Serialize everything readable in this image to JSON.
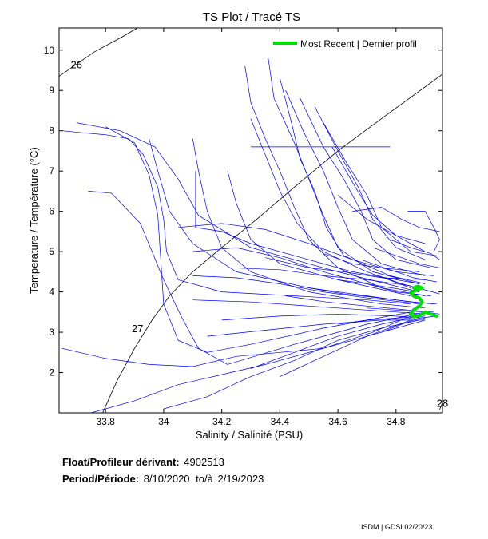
{
  "chart_data": {
    "type": "scatter",
    "title": "TS Plot / Tracé TS",
    "xlabel": "Salinity / Salinité (PSU)",
    "ylabel": "Temperature / Température (°C)",
    "xlim": [
      33.64,
      34.96
    ],
    "ylim": [
      1.0,
      10.55
    ],
    "xticks": [
      "33.8",
      "34",
      "34.2",
      "34.4",
      "34.6",
      "34.8"
    ],
    "xtick_values": [
      33.8,
      34.0,
      34.2,
      34.4,
      34.6,
      34.8
    ],
    "yticks": [
      "2",
      "3",
      "4",
      "5",
      "6",
      "7",
      "8",
      "9",
      "10"
    ],
    "ytick_values": [
      2,
      3,
      4,
      5,
      6,
      7,
      8,
      9,
      10
    ],
    "grid": false,
    "legend_position": "top-right",
    "legend": [
      {
        "name": "Most Recent | Dernier profil",
        "color": "#00e000"
      }
    ],
    "series_color": "#0000ee",
    "recent_color": "#00e000",
    "density_contours": [
      {
        "label": "26",
        "points": [
          [
            33.64,
            9.35
          ],
          [
            33.69,
            9.6
          ],
          [
            33.76,
            9.95
          ],
          [
            33.85,
            10.3
          ],
          [
            33.91,
            10.55
          ]
        ],
        "label_at": [
          33.68,
          9.55
        ]
      },
      {
        "label": "27",
        "points": [
          [
            33.79,
            1.0
          ],
          [
            33.84,
            1.8
          ],
          [
            33.9,
            2.6
          ],
          [
            33.96,
            3.3
          ],
          [
            34.02,
            3.9
          ],
          [
            34.1,
            4.5
          ],
          [
            34.2,
            5.1
          ],
          [
            34.32,
            5.8
          ],
          [
            34.45,
            6.6
          ],
          [
            34.6,
            7.5
          ],
          [
            34.75,
            8.3
          ],
          [
            34.96,
            9.4
          ]
        ],
        "label_at": [
          33.89,
          3.0
        ]
      },
      {
        "label": "28",
        "points": [
          [
            34.95,
            1.08
          ],
          [
            34.96,
            1.25
          ]
        ],
        "label_at": [
          34.94,
          1.15
        ]
      }
    ],
    "recent_profile": {
      "name": "Most Recent | Dernier profil",
      "points": [
        [
          34.94,
          3.4
        ],
        [
          34.92,
          3.45
        ],
        [
          34.9,
          3.5
        ],
        [
          34.88,
          3.42
        ],
        [
          34.86,
          3.38
        ],
        [
          34.85,
          3.45
        ],
        [
          34.86,
          3.55
        ],
        [
          34.88,
          3.65
        ],
        [
          34.89,
          3.75
        ],
        [
          34.88,
          3.85
        ],
        [
          34.86,
          3.9
        ],
        [
          34.85,
          3.98
        ],
        [
          34.87,
          4.05
        ],
        [
          34.89,
          4.1
        ],
        [
          34.875,
          4.14
        ],
        [
          34.86,
          4.1
        ]
      ]
    },
    "profiles": [
      [
        [
          33.65,
          8.0
        ],
        [
          33.72,
          7.95
        ],
        [
          33.8,
          7.9
        ],
        [
          33.88,
          7.8
        ],
        [
          33.93,
          7.4
        ],
        [
          33.98,
          6.6
        ],
        [
          34.0,
          5.8
        ],
        [
          34.01,
          5.0
        ],
        [
          34.05,
          4.3
        ],
        [
          34.2,
          4.0
        ],
        [
          34.45,
          3.9
        ],
        [
          34.7,
          3.8
        ],
        [
          34.85,
          3.7
        ]
      ],
      [
        [
          33.95,
          7.8
        ],
        [
          33.98,
          7.0
        ],
        [
          34.02,
          6.0
        ],
        [
          34.1,
          5.2
        ],
        [
          34.25,
          4.5
        ],
        [
          34.5,
          4.1
        ],
        [
          34.8,
          3.8
        ]
      ],
      [
        [
          33.7,
          8.2
        ],
        [
          33.85,
          8.0
        ],
        [
          33.97,
          7.6
        ],
        [
          34.05,
          6.8
        ],
        [
          34.12,
          5.9
        ],
        [
          34.3,
          5.1
        ],
        [
          34.6,
          4.5
        ],
        [
          34.88,
          4.0
        ]
      ],
      [
        [
          33.8,
          8.1
        ],
        [
          33.9,
          7.7
        ],
        [
          33.95,
          6.9
        ],
        [
          33.98,
          5.9
        ],
        [
          33.99,
          4.8
        ],
        [
          34.0,
          3.7
        ],
        [
          34.05,
          2.8
        ],
        [
          34.15,
          2.5
        ],
        [
          34.3,
          2.7
        ],
        [
          34.55,
          3.1
        ],
        [
          34.85,
          3.5
        ]
      ],
      [
        [
          33.74,
          6.5
        ],
        [
          33.82,
          6.45
        ],
        [
          33.92,
          5.7
        ],
        [
          34.0,
          4.3
        ],
        [
          34.06,
          3.4
        ],
        [
          34.12,
          2.6
        ],
        [
          34.22,
          2.2
        ],
        [
          34.45,
          2.7
        ],
        [
          34.7,
          3.2
        ],
        [
          34.9,
          3.5
        ]
      ],
      [
        [
          33.75,
          1.0
        ],
        [
          33.9,
          1.3
        ],
        [
          34.05,
          1.7
        ],
        [
          34.2,
          1.95
        ],
        [
          34.35,
          2.2
        ],
        [
          34.5,
          2.5
        ],
        [
          34.65,
          2.8
        ],
        [
          34.8,
          3.1
        ],
        [
          34.9,
          3.3
        ]
      ],
      [
        [
          34.0,
          1.1
        ],
        [
          34.15,
          1.4
        ],
        [
          34.3,
          1.9
        ],
        [
          34.45,
          2.3
        ],
        [
          34.6,
          2.8
        ],
        [
          34.75,
          3.1
        ],
        [
          34.88,
          3.3
        ]
      ],
      [
        [
          33.65,
          2.6
        ],
        [
          33.8,
          2.35
        ],
        [
          33.95,
          2.2
        ],
        [
          34.1,
          2.15
        ],
        [
          34.25,
          2.4
        ],
        [
          34.4,
          2.5
        ],
        [
          34.55,
          2.6
        ],
        [
          34.72,
          3.0
        ],
        [
          34.85,
          3.4
        ]
      ],
      [
        [
          34.1,
          7.8
        ],
        [
          34.12,
          7.0
        ],
        [
          34.15,
          6.0
        ],
        [
          34.2,
          5.1
        ],
        [
          34.3,
          4.5
        ],
        [
          34.5,
          4.0
        ],
        [
          34.75,
          3.7
        ],
        [
          34.9,
          3.6
        ]
      ],
      [
        [
          34.22,
          7.0
        ],
        [
          34.25,
          6.2
        ],
        [
          34.3,
          5.3
        ],
        [
          34.4,
          4.7
        ],
        [
          34.6,
          4.3
        ],
        [
          34.85,
          3.9
        ]
      ],
      [
        [
          34.11,
          7.0
        ],
        [
          34.11,
          5.6
        ],
        [
          34.2,
          5.5
        ],
        [
          34.3,
          5.2
        ],
        [
          34.45,
          4.9
        ],
        [
          34.65,
          4.5
        ],
        [
          34.88,
          4.2
        ]
      ],
      [
        [
          34.3,
          7.6
        ],
        [
          34.78,
          7.6
        ]
      ],
      [
        [
          34.28,
          9.6
        ],
        [
          34.3,
          8.7
        ],
        [
          34.35,
          7.8
        ],
        [
          34.4,
          7.0
        ],
        [
          34.45,
          6.1
        ],
        [
          34.5,
          5.3
        ],
        [
          34.6,
          4.6
        ],
        [
          34.75,
          4.1
        ],
        [
          34.9,
          3.9
        ]
      ],
      [
        [
          34.36,
          9.8
        ],
        [
          34.38,
          8.8
        ],
        [
          34.45,
          7.7
        ],
        [
          34.5,
          6.8
        ],
        [
          34.55,
          5.9
        ],
        [
          34.6,
          5.1
        ],
        [
          34.72,
          4.5
        ],
        [
          34.88,
          4.2
        ]
      ],
      [
        [
          34.42,
          9.0
        ],
        [
          34.48,
          8.0
        ],
        [
          34.55,
          7.0
        ],
        [
          34.6,
          6.1
        ],
        [
          34.65,
          5.3
        ],
        [
          34.75,
          4.7
        ],
        [
          34.9,
          4.4
        ]
      ],
      [
        [
          34.47,
          8.8
        ],
        [
          34.55,
          7.6
        ],
        [
          34.62,
          6.8
        ],
        [
          34.68,
          6.0
        ],
        [
          34.72,
          5.3
        ],
        [
          34.8,
          4.8
        ],
        [
          34.92,
          4.6
        ]
      ],
      [
        [
          34.4,
          9.3
        ],
        [
          34.44,
          8.2
        ],
        [
          34.47,
          7.3
        ],
        [
          34.52,
          6.5
        ],
        [
          34.56,
          5.6
        ],
        [
          34.62,
          4.9
        ],
        [
          34.78,
          4.4
        ],
        [
          34.9,
          4.2
        ]
      ],
      [
        [
          34.52,
          8.6
        ],
        [
          34.6,
          7.5
        ],
        [
          34.67,
          6.6
        ],
        [
          34.72,
          5.8
        ],
        [
          34.8,
          5.1
        ],
        [
          34.9,
          4.8
        ]
      ],
      [
        [
          34.55,
          8.2
        ],
        [
          34.63,
          7.2
        ],
        [
          34.7,
          6.4
        ],
        [
          34.75,
          5.6
        ],
        [
          34.85,
          5.0
        ],
        [
          34.94,
          4.9
        ]
      ],
      [
        [
          34.3,
          8.3
        ],
        [
          34.35,
          7.4
        ],
        [
          34.4,
          6.5
        ],
        [
          34.46,
          5.7
        ],
        [
          34.55,
          5.0
        ],
        [
          34.7,
          4.5
        ],
        [
          34.85,
          4.1
        ]
      ],
      [
        [
          34.58,
          7.6
        ],
        [
          34.66,
          6.6
        ],
        [
          34.72,
          5.9
        ],
        [
          34.8,
          5.4
        ],
        [
          34.9,
          5.0
        ]
      ],
      [
        [
          34.6,
          6.4
        ],
        [
          34.7,
          5.8
        ],
        [
          34.8,
          5.4
        ],
        [
          34.9,
          5.2
        ]
      ],
      [
        [
          34.65,
          6.0
        ],
        [
          34.75,
          6.1
        ],
        [
          34.82,
          5.8
        ],
        [
          34.88,
          5.6
        ],
        [
          34.95,
          5.5
        ]
      ],
      [
        [
          34.84,
          6.0
        ],
        [
          34.9,
          6.0
        ],
        [
          34.93,
          5.6
        ],
        [
          34.95,
          5.3
        ],
        [
          34.93,
          5.0
        ]
      ],
      [
        [
          34.05,
          5.6
        ],
        [
          34.2,
          5.7
        ],
        [
          34.35,
          5.55
        ],
        [
          34.5,
          5.2
        ],
        [
          34.65,
          4.8
        ],
        [
          34.8,
          4.5
        ],
        [
          34.93,
          4.4
        ]
      ],
      [
        [
          34.1,
          5.0
        ],
        [
          34.25,
          5.1
        ],
        [
          34.4,
          4.85
        ],
        [
          34.55,
          4.5
        ],
        [
          34.7,
          4.2
        ],
        [
          34.87,
          4.0
        ]
      ],
      [
        [
          34.1,
          4.4
        ],
        [
          34.25,
          4.35
        ],
        [
          34.4,
          4.2
        ],
        [
          34.55,
          4.0
        ],
        [
          34.7,
          3.85
        ],
        [
          34.88,
          3.7
        ]
      ],
      [
        [
          34.1,
          3.8
        ],
        [
          34.3,
          3.75
        ],
        [
          34.5,
          3.65
        ],
        [
          34.7,
          3.55
        ],
        [
          34.9,
          3.45
        ]
      ],
      [
        [
          34.2,
          3.3
        ],
        [
          34.4,
          3.4
        ],
        [
          34.6,
          3.45
        ],
        [
          34.8,
          3.4
        ],
        [
          34.9,
          3.35
        ]
      ],
      [
        [
          34.15,
          2.9
        ],
        [
          34.35,
          3.05
        ],
        [
          34.55,
          3.2
        ],
        [
          34.75,
          3.3
        ],
        [
          34.9,
          3.3
        ]
      ],
      [
        [
          34.3,
          2.1
        ],
        [
          34.45,
          2.5
        ],
        [
          34.6,
          2.9
        ],
        [
          34.75,
          3.2
        ],
        [
          34.88,
          3.4
        ]
      ],
      [
        [
          34.4,
          1.9
        ],
        [
          34.55,
          2.4
        ],
        [
          34.7,
          2.9
        ],
        [
          34.85,
          3.3
        ]
      ],
      [
        [
          34.23,
          4.6
        ],
        [
          34.4,
          4.55
        ],
        [
          34.55,
          4.4
        ],
        [
          34.7,
          4.3
        ],
        [
          34.85,
          4.15
        ]
      ],
      [
        [
          34.35,
          4.85
        ],
        [
          34.5,
          4.6
        ],
        [
          34.62,
          4.5
        ],
        [
          34.75,
          4.35
        ],
        [
          34.9,
          4.3
        ]
      ],
      [
        [
          34.55,
          4.95
        ],
        [
          34.65,
          4.7
        ],
        [
          34.75,
          4.6
        ],
        [
          34.88,
          4.5
        ]
      ],
      [
        [
          34.6,
          4.3
        ],
        [
          34.7,
          4.2
        ],
        [
          34.8,
          4.0
        ],
        [
          34.92,
          3.9
        ]
      ],
      [
        [
          34.65,
          3.95
        ],
        [
          34.75,
          3.85
        ],
        [
          34.85,
          3.75
        ],
        [
          34.93,
          3.7
        ]
      ],
      [
        [
          34.7,
          3.6
        ],
        [
          34.8,
          3.55
        ],
        [
          34.9,
          3.5
        ],
        [
          34.95,
          3.45
        ]
      ],
      [
        [
          34.6,
          3.2
        ],
        [
          34.7,
          3.3
        ],
        [
          34.8,
          3.35
        ],
        [
          34.9,
          3.4
        ]
      ],
      [
        [
          34.72,
          5.1
        ],
        [
          34.8,
          4.9
        ],
        [
          34.88,
          4.7
        ],
        [
          34.95,
          4.6
        ]
      ],
      [
        [
          34.68,
          4.8
        ],
        [
          34.78,
          4.55
        ],
        [
          34.86,
          4.35
        ],
        [
          34.94,
          4.25
        ]
      ],
      [
        [
          34.74,
          4.4
        ],
        [
          34.82,
          4.2
        ],
        [
          34.9,
          4.05
        ],
        [
          34.95,
          3.95
        ]
      ],
      [
        [
          34.78,
          5.3
        ],
        [
          34.85,
          5.1
        ],
        [
          34.92,
          4.95
        ],
        [
          34.95,
          4.8
        ]
      ],
      [
        [
          34.5,
          4.1
        ],
        [
          34.62,
          3.95
        ],
        [
          34.74,
          3.85
        ],
        [
          34.86,
          3.75
        ],
        [
          34.94,
          3.7
        ]
      ],
      [
        [
          34.42,
          3.9
        ],
        [
          34.56,
          3.75
        ],
        [
          34.7,
          3.65
        ],
        [
          34.84,
          3.55
        ],
        [
          34.93,
          3.5
        ]
      ],
      [
        [
          34.75,
          3.0
        ],
        [
          34.82,
          3.2
        ],
        [
          34.88,
          3.35
        ],
        [
          34.94,
          3.4
        ]
      ]
    ]
  },
  "info": {
    "float_label": "Float/Profileur dérivant:",
    "float_value": "4902513",
    "period_label": "Period/Période:",
    "period_start": "8/10/2020",
    "period_sep": "to/à",
    "period_end": "2/19/2023"
  },
  "credit": "ISDM | GDSI  02/20/23"
}
